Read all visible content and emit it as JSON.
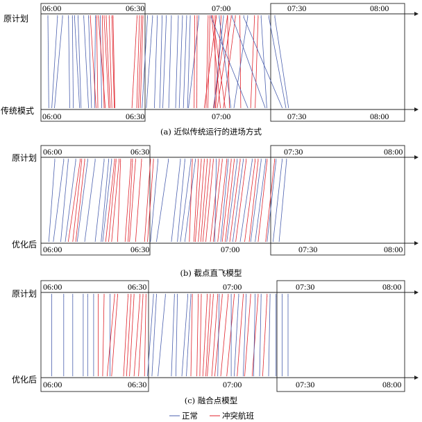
{
  "colors": {
    "normal": "#4a5fae",
    "conflict": "#e0222b",
    "frame": "#222222"
  },
  "panels": [
    {
      "top_label": "原计划",
      "bottom_label": "传统模式",
      "times": [
        "06:00",
        "06:30",
        "07:00",
        "07:30",
        "08:00"
      ],
      "caption": "(a) 近似传统运行的进场方式",
      "flights": [
        {
          "s": 0.7,
          "e": 1.0,
          "t": "n"
        },
        {
          "s": 3.9,
          "e": 2.0,
          "t": "n"
        },
        {
          "s": 5.6,
          "e": 2.9,
          "t": "n"
        },
        {
          "s": 7.6,
          "e": 8.0,
          "t": "n"
        },
        {
          "s": 8.9,
          "e": 9.2,
          "t": "n"
        },
        {
          "s": 9.6,
          "e": 11.3,
          "t": "n"
        },
        {
          "s": 10.8,
          "e": 11.8,
          "t": "n"
        },
        {
          "s": 12.7,
          "e": 14.3,
          "t": "n"
        },
        {
          "s": 14.3,
          "e": 15.3,
          "t": "n"
        },
        {
          "s": 16.6,
          "e": 16.3,
          "t": "n"
        },
        {
          "s": 18.2,
          "e": 18.7,
          "t": "n"
        },
        {
          "s": 14.9,
          "e": 16.8,
          "t": "c"
        },
        {
          "s": 17.0,
          "e": 17.4,
          "t": "c"
        },
        {
          "s": 17.6,
          "e": 19.9,
          "t": "c"
        },
        {
          "s": 18.9,
          "e": 19.5,
          "t": "c"
        },
        {
          "s": 19.5,
          "e": 21.1,
          "t": "c"
        },
        {
          "s": 20.2,
          "e": 21.5,
          "t": "c"
        },
        {
          "s": 21.2,
          "e": 22.1,
          "t": "c"
        },
        {
          "s": 22.1,
          "e": 22.9,
          "t": "c"
        },
        {
          "s": 22.5,
          "e": 23.1,
          "t": "c"
        },
        {
          "s": 30.5,
          "e": 28.8,
          "t": "c"
        },
        {
          "s": 31.3,
          "e": 30.4,
          "t": "c"
        },
        {
          "s": 32.0,
          "e": 31.0,
          "t": "c"
        },
        {
          "s": 32.5,
          "e": 31.6,
          "t": "c"
        },
        {
          "s": 34.0,
          "e": 32.2,
          "t": "n"
        },
        {
          "s": 35.7,
          "e": 33.6,
          "t": "n"
        },
        {
          "s": 37.3,
          "e": 36.3,
          "t": "n"
        },
        {
          "s": 38.9,
          "e": 38.1,
          "t": "n"
        },
        {
          "s": 40.3,
          "e": 39.1,
          "t": "n"
        },
        {
          "s": 42.0,
          "e": 41.1,
          "t": "n"
        },
        {
          "s": 44.3,
          "e": 43.4,
          "t": "n"
        },
        {
          "s": 45.7,
          "e": 44.6,
          "t": "n"
        },
        {
          "s": 47.1,
          "e": 46.0,
          "t": "n"
        },
        {
          "s": 48.3,
          "e": 47.4,
          "t": "n"
        },
        {
          "s": 51.2,
          "e": 47.7,
          "t": "n"
        },
        {
          "s": 49.8,
          "e": 49.6,
          "t": "c"
        },
        {
          "s": 50.6,
          "e": 50.5,
          "t": "c"
        },
        {
          "s": 54.3,
          "e": 53.6,
          "t": "c"
        },
        {
          "s": 54.9,
          "e": 54.2,
          "t": "c"
        },
        {
          "s": 57.0,
          "e": 53.0,
          "t": "c"
        },
        {
          "s": 58.6,
          "e": 56.8,
          "t": "c"
        },
        {
          "s": 60.7,
          "e": 56.0,
          "t": "c"
        },
        {
          "s": 55.5,
          "e": 58.4,
          "t": "c"
        },
        {
          "s": 55.9,
          "e": 60.0,
          "t": "c"
        },
        {
          "s": 56.6,
          "e": 56.6,
          "t": "c"
        },
        {
          "s": 60.8,
          "e": 61.4,
          "t": "c"
        },
        {
          "s": 62.0,
          "e": 57.3,
          "t": "c"
        },
        {
          "s": 63.4,
          "e": 59.4,
          "t": "c"
        },
        {
          "s": 64.9,
          "e": 65.2,
          "t": "c"
        },
        {
          "s": 69.8,
          "e": 68.5,
          "t": "c"
        },
        {
          "s": 71.0,
          "e": 70.0,
          "t": "c"
        },
        {
          "s": 55.3,
          "e": 67.6,
          "t": "n"
        },
        {
          "s": 58.0,
          "e": 61.9,
          "t": "n"
        },
        {
          "s": 59.4,
          "e": 56.2,
          "t": "n"
        },
        {
          "s": 62.4,
          "e": 73.4,
          "t": "n"
        },
        {
          "s": 66.2,
          "e": 79.1,
          "t": "n"
        },
        {
          "s": 67.5,
          "e": 62.9,
          "t": "n"
        },
        {
          "s": 72.0,
          "e": 73.9,
          "t": "n"
        },
        {
          "s": 74.6,
          "e": 80.3,
          "t": "n"
        },
        {
          "s": 76.6,
          "e": 81.2,
          "t": "n"
        }
      ]
    },
    {
      "top_label": "原计划",
      "bottom_label": "优化后",
      "times": [
        "06:00",
        "06:30",
        "07:00",
        "07:30",
        "08:00"
      ],
      "caption": "(b) 截点直飞模型",
      "flights": [
        {
          "s": 3.0,
          "e": 1.0,
          "t": "n"
        },
        {
          "s": 6.0,
          "e": 2.5,
          "t": "n"
        },
        {
          "s": 7.5,
          "e": 5.0,
          "t": "n"
        },
        {
          "s": 10.0,
          "e": 6.5,
          "t": "n"
        },
        {
          "s": 14.0,
          "e": 10.5,
          "t": "n"
        },
        {
          "s": 16.5,
          "e": 13.0,
          "t": "n"
        },
        {
          "s": 19.5,
          "e": 16.5,
          "t": "n"
        },
        {
          "s": 21.0,
          "e": 18.5,
          "t": "n"
        },
        {
          "s": 22.0,
          "e": 19.0,
          "t": "n"
        },
        {
          "s": 11.5,
          "e": 7.5,
          "t": "c"
        },
        {
          "s": 12.0,
          "e": 9.0,
          "t": "c"
        },
        {
          "s": 13.0,
          "e": 10.0,
          "t": "c"
        },
        {
          "s": 23.0,
          "e": 20.0,
          "t": "c"
        },
        {
          "s": 23.5,
          "e": 21.0,
          "t": "c"
        },
        {
          "s": 24.5,
          "e": 22.0,
          "t": "c"
        },
        {
          "s": 25.0,
          "e": 24.0,
          "t": "c"
        },
        {
          "s": 28.5,
          "e": 26.5,
          "t": "c"
        },
        {
          "s": 29.0,
          "e": 27.5,
          "t": "c"
        },
        {
          "s": 30.0,
          "e": 28.0,
          "t": "c"
        },
        {
          "s": 32.0,
          "e": 30.0,
          "t": "c"
        },
        {
          "s": 35.0,
          "e": 33.0,
          "t": "c"
        },
        {
          "s": 36.0,
          "e": 34.0,
          "t": "c"
        },
        {
          "s": 37.5,
          "e": 35.0,
          "t": "n"
        },
        {
          "s": 41.0,
          "e": 37.0,
          "t": "n"
        },
        {
          "s": 45.0,
          "e": 42.0,
          "t": "n"
        },
        {
          "s": 46.5,
          "e": 44.0,
          "t": "n"
        },
        {
          "s": 48.5,
          "e": 45.0,
          "t": "n"
        },
        {
          "s": 50.0,
          "e": 46.5,
          "t": "n"
        },
        {
          "s": 49.0,
          "e": 48.0,
          "t": "c"
        },
        {
          "s": 51.0,
          "e": 49.5,
          "t": "c"
        },
        {
          "s": 52.0,
          "e": 50.0,
          "t": "c"
        },
        {
          "s": 53.0,
          "e": 51.0,
          "t": "c"
        },
        {
          "s": 54.0,
          "e": 51.8,
          "t": "c"
        },
        {
          "s": 55.0,
          "e": 52.5,
          "t": "c"
        },
        {
          "s": 56.0,
          "e": 53.5,
          "t": "c"
        },
        {
          "s": 58.0,
          "e": 55.0,
          "t": "c"
        },
        {
          "s": 59.0,
          "e": 56.0,
          "t": "c"
        },
        {
          "s": 60.5,
          "e": 57.5,
          "t": "c"
        },
        {
          "s": 62.0,
          "e": 59.0,
          "t": "c"
        },
        {
          "s": 63.0,
          "e": 60.0,
          "t": "c"
        },
        {
          "s": 65.0,
          "e": 61.5,
          "t": "c"
        },
        {
          "s": 67.0,
          "e": 63.5,
          "t": "c"
        },
        {
          "s": 70.0,
          "e": 66.5,
          "t": "c"
        },
        {
          "s": 71.0,
          "e": 68.0,
          "t": "c"
        },
        {
          "s": 74.0,
          "e": 71.0,
          "t": "c"
        },
        {
          "s": 76.5,
          "e": 73.5,
          "t": "c"
        },
        {
          "s": 57.0,
          "e": 56.5,
          "t": "n"
        },
        {
          "s": 61.0,
          "e": 58.5,
          "t": "n"
        },
        {
          "s": 64.0,
          "e": 60.5,
          "t": "n"
        },
        {
          "s": 66.0,
          "e": 62.5,
          "t": "n"
        },
        {
          "s": 69.0,
          "e": 65.0,
          "t": "n"
        },
        {
          "s": 72.0,
          "e": 68.5,
          "t": "n"
        },
        {
          "s": 73.5,
          "e": 70.0,
          "t": "n"
        },
        {
          "s": 77.0,
          "e": 74.0,
          "t": "n"
        },
        {
          "s": 79.0,
          "e": 76.0,
          "t": "n"
        },
        {
          "s": 80.5,
          "e": 78.0,
          "t": "n"
        }
      ]
    },
    {
      "top_label": "原计划",
      "bottom_label": "优化后",
      "times": [
        "06:00",
        "06:30",
        "07:00",
        "07:30",
        "08:00"
      ],
      "caption": "(c) 融合点模型",
      "flights": [
        {
          "s": 2.0,
          "e": 2.0,
          "t": "n"
        },
        {
          "s": 6.0,
          "e": 6.0,
          "t": "n"
        },
        {
          "s": 9.0,
          "e": 9.0,
          "t": "n"
        },
        {
          "s": 12.5,
          "e": 12.5,
          "t": "n"
        },
        {
          "s": 14.0,
          "e": 14.0,
          "t": "n"
        },
        {
          "s": 16.0,
          "e": 16.0,
          "t": "n"
        },
        {
          "s": 21.5,
          "e": 21.5,
          "t": "n"
        },
        {
          "s": 17.5,
          "e": 17.5,
          "t": "c"
        },
        {
          "s": 19.5,
          "e": 19.0,
          "t": "c"
        },
        {
          "s": 23.0,
          "e": 20.5,
          "t": "c"
        },
        {
          "s": 24.0,
          "e": 22.0,
          "t": "c"
        },
        {
          "s": 27.5,
          "e": 26.0,
          "t": "c"
        },
        {
          "s": 28.5,
          "e": 27.0,
          "t": "c"
        },
        {
          "s": 29.5,
          "e": 28.0,
          "t": "c"
        },
        {
          "s": 31.5,
          "e": 29.5,
          "t": "c"
        },
        {
          "s": 32.5,
          "e": 31.0,
          "t": "c"
        },
        {
          "s": 33.5,
          "e": 33.0,
          "t": "c"
        },
        {
          "s": 36.0,
          "e": 34.0,
          "t": "n"
        },
        {
          "s": 37.0,
          "e": 35.5,
          "t": "n"
        },
        {
          "s": 40.0,
          "e": 37.5,
          "t": "n"
        },
        {
          "s": 43.0,
          "e": 42.0,
          "t": "n"
        },
        {
          "s": 44.0,
          "e": 43.5,
          "t": "n"
        },
        {
          "s": 47.5,
          "e": 45.5,
          "t": "n"
        },
        {
          "s": 48.5,
          "e": 47.0,
          "t": "n"
        },
        {
          "s": 49.0,
          "e": 48.5,
          "t": "c"
        },
        {
          "s": 51.0,
          "e": 50.5,
          "t": "c"
        },
        {
          "s": 52.0,
          "e": 51.5,
          "t": "c"
        },
        {
          "s": 54.0,
          "e": 52.5,
          "t": "c"
        },
        {
          "s": 55.0,
          "e": 53.5,
          "t": "c"
        },
        {
          "s": 56.0,
          "e": 54.0,
          "t": "c"
        },
        {
          "s": 57.5,
          "e": 55.5,
          "t": "c"
        },
        {
          "s": 59.0,
          "e": 56.5,
          "t": "c"
        },
        {
          "s": 61.0,
          "e": 58.5,
          "t": "c"
        },
        {
          "s": 63.0,
          "e": 60.5,
          "t": "c"
        },
        {
          "s": 66.0,
          "e": 64.0,
          "t": "c"
        },
        {
          "s": 68.5,
          "e": 66.5,
          "t": "c"
        },
        {
          "s": 71.0,
          "e": 69.0,
          "t": "c"
        },
        {
          "s": 74.0,
          "e": 72.5,
          "t": "c"
        },
        {
          "s": 58.0,
          "e": 57.5,
          "t": "n"
        },
        {
          "s": 62.0,
          "e": 62.0,
          "t": "n"
        },
        {
          "s": 64.5,
          "e": 63.0,
          "t": "n"
        },
        {
          "s": 67.0,
          "e": 66.0,
          "t": "n"
        },
        {
          "s": 70.0,
          "e": 69.5,
          "t": "n"
        },
        {
          "s": 72.0,
          "e": 71.5,
          "t": "n"
        },
        {
          "s": 75.0,
          "e": 74.5,
          "t": "n"
        },
        {
          "s": 77.0,
          "e": 77.0,
          "t": "n"
        },
        {
          "s": 79.0,
          "e": 79.0,
          "t": "n"
        },
        {
          "s": 81.0,
          "e": 81.0,
          "t": "n"
        }
      ]
    }
  ],
  "legend": {
    "normal": "正常",
    "conflict": "冲突航班"
  }
}
